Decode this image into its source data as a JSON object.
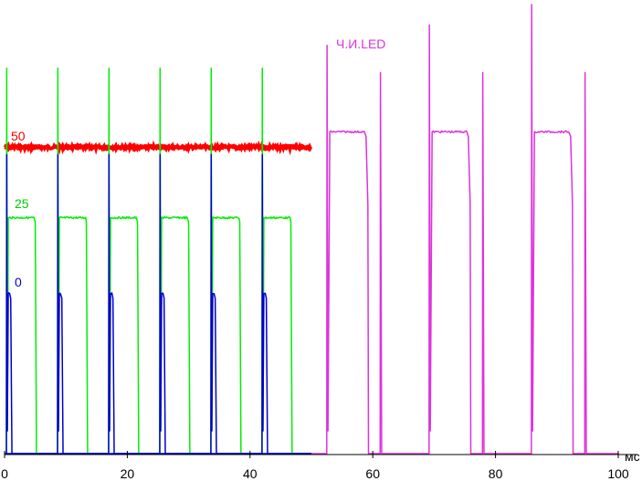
{
  "chart_data": {
    "type": "line",
    "xlabel": "мс",
    "xlim": [
      0,
      100
    ],
    "x_ticks": [
      0,
      20,
      40,
      60,
      80,
      100
    ],
    "x_tick_labels": [
      "0",
      "20",
      "40",
      "60",
      "80",
      "100"
    ],
    "ylim": [
      0,
      1
    ],
    "grid": false,
    "series": [
      {
        "name": "50",
        "color": "#ff0000",
        "description_values": "constant level",
        "x": [
          0,
          50
        ],
        "level": 0.676,
        "x_range": [
          0,
          50
        ]
      },
      {
        "name": "25",
        "color": "#00ee00",
        "period": 8.33,
        "pulse_start": 0.3,
        "pulse_width": 4.9,
        "level": 0.521,
        "spike_level": 0.85,
        "pulses": 6,
        "x_range": [
          0,
          50
        ]
      },
      {
        "name": "0",
        "color": "#0000cc",
        "period": 8.33,
        "pulse_start": 0.3,
        "pulse_width": 0.9,
        "level": 0.354,
        "spike_level": 0.66,
        "pulses": 6,
        "x_range": [
          0,
          50
        ]
      },
      {
        "name": "Ч.И.LED",
        "color": "#dd33dd",
        "period": 16.67,
        "pulse_start": 53.0,
        "pulse_width": 5.9,
        "level": 0.71,
        "spike_level": 0.9,
        "pulses": 3,
        "x_range": [
          50,
          100
        ]
      }
    ]
  }
}
